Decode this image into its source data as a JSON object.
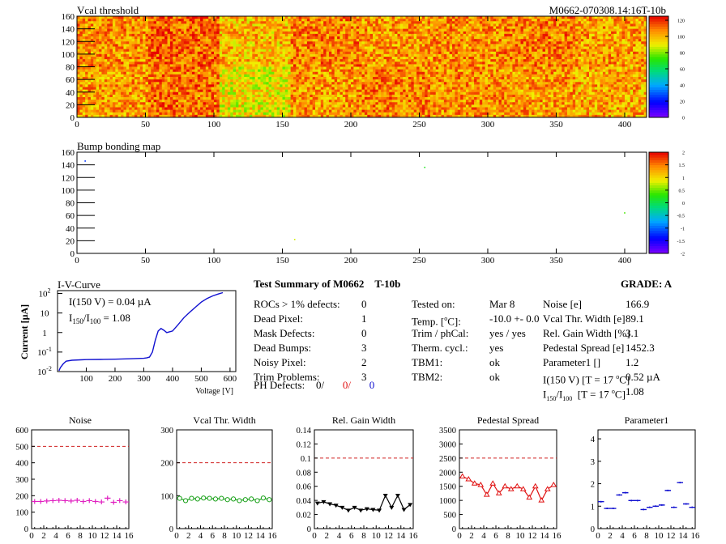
{
  "header": {
    "module_id": "M0662-070308.14:16T-10b"
  },
  "chart_data": [
    {
      "type": "heatmap",
      "title": "Vcal threshold",
      "x_ticks": [
        0,
        50,
        100,
        150,
        200,
        250,
        300,
        350,
        400
      ],
      "y_ticks": [
        0,
        20,
        40,
        60,
        80,
        100,
        120,
        140,
        160
      ],
      "xlim": [
        0,
        416
      ],
      "ylim": [
        0,
        160
      ],
      "roc_grid": {
        "cols": 8,
        "rows": 2
      },
      "roc_mean_levels": [
        [
          106,
          112,
          100,
          108,
          104,
          106,
          108,
          104
        ],
        [
          104,
          110,
          92,
          104,
          108,
          106,
          104,
          102
        ]
      ],
      "colorbar": {
        "min": 0,
        "max": 125,
        "ticks": [
          "0",
          "20",
          "40",
          "60",
          "80",
          "100",
          "120"
        ]
      }
    },
    {
      "type": "heatmap",
      "title": "Bump bonding map",
      "x_ticks": [
        0,
        50,
        100,
        150,
        200,
        250,
        300,
        350,
        400
      ],
      "y_ticks": [
        0,
        20,
        40,
        60,
        80,
        100,
        120,
        140,
        160
      ],
      "xlim": [
        0,
        416
      ],
      "ylim": [
        0,
        160
      ],
      "defects": [
        {
          "x": 6,
          "y": 146,
          "v": -1.2
        },
        {
          "x": 159,
          "y": 22,
          "v": 0.8
        },
        {
          "x": 254,
          "y": 136,
          "v": 0.2
        },
        {
          "x": 400,
          "y": 64,
          "v": 0.4
        }
      ],
      "colorbar": {
        "min": -2,
        "max": 2,
        "ticks": [
          "-2",
          "-1.5",
          "-1",
          "-0.5",
          "0",
          "0.5",
          "1",
          "1.5",
          "2"
        ]
      }
    },
    {
      "type": "line",
      "title": "I-V-Curve",
      "xlabel": "Voltage [V]",
      "ylabel": "Current [µA]",
      "y_scale": "log",
      "x_ticks": [
        "100",
        "200",
        "300",
        "400",
        "500",
        "600"
      ],
      "y_ticks": [
        {
          "base": "10",
          "exp": "-2"
        },
        {
          "base": "10",
          "exp": "-1"
        },
        {
          "base": "1",
          "exp": ""
        },
        {
          "base": "10",
          "exp": ""
        },
        {
          "base": "10",
          "exp": "2"
        }
      ],
      "xlim": [
        0,
        620
      ],
      "ylim": [
        0.01,
        140
      ],
      "annotation_line1": "I(150 V) = 0.04 µA",
      "annotation_line2_main": "I",
      "annotation_sub1": "150",
      "annotation_slash": "/I",
      "annotation_sub2": "100",
      "annotation_value": " =  1.08",
      "x": [
        5,
        10,
        20,
        30,
        50,
        80,
        100,
        150,
        200,
        250,
        300,
        310,
        320,
        330,
        340,
        350,
        360,
        370,
        380,
        400,
        420,
        440,
        460,
        480,
        500,
        520,
        540,
        560,
        575
      ],
      "y": [
        0.011,
        0.016,
        0.025,
        0.034,
        0.038,
        0.04,
        0.041,
        0.042,
        0.043,
        0.045,
        0.048,
        0.05,
        0.055,
        0.1,
        0.4,
        1.2,
        1.6,
        1.3,
        1.0,
        1.2,
        2.6,
        5.8,
        11,
        20,
        36,
        55,
        75,
        95,
        110
      ]
    },
    {
      "type": "scatter",
      "title": "Noise",
      "x_ticks": [
        "0",
        "2",
        "4",
        "6",
        "8",
        "10",
        "12",
        "14",
        "16"
      ],
      "y_ticks": [
        "0",
        "100",
        "200",
        "300",
        "400",
        "500",
        "600"
      ],
      "xlim": [
        0,
        16
      ],
      "ylim": [
        0,
        600
      ],
      "reference": 500,
      "color": "#e020c0",
      "marker": "plus",
      "connect": false,
      "x": [
        0,
        1,
        2,
        3,
        4,
        5,
        6,
        7,
        8,
        9,
        10,
        11,
        12,
        13,
        14,
        15
      ],
      "y": [
        165,
        165,
        168,
        170,
        172,
        170,
        168,
        172,
        165,
        170,
        165,
        162,
        185,
        160,
        170,
        162
      ]
    },
    {
      "type": "line",
      "title": "Vcal Thr. Width",
      "x_ticks": [
        "0",
        "2",
        "4",
        "6",
        "8",
        "10",
        "12",
        "14",
        "16"
      ],
      "y_ticks": [
        "0",
        "100",
        "200",
        "300"
      ],
      "xlim": [
        0,
        16
      ],
      "ylim": [
        0,
        300
      ],
      "reference": 200,
      "color": "#18a018",
      "marker": "circle",
      "connect": true,
      "x": [
        0,
        1,
        2,
        3,
        4,
        5,
        6,
        7,
        8,
        9,
        10,
        11,
        12,
        13,
        14,
        15
      ],
      "y": [
        92,
        85,
        92,
        90,
        93,
        92,
        90,
        92,
        88,
        90,
        85,
        88,
        90,
        85,
        93,
        88
      ]
    },
    {
      "type": "line",
      "title": "Rel. Gain Width",
      "x_ticks": [
        "0",
        "2",
        "4",
        "6",
        "8",
        "10",
        "12",
        "14",
        "16"
      ],
      "y_ticks": [
        "0",
        "0.02",
        "0.04",
        "0.06",
        "0.08",
        "0.1",
        "0.12",
        "0.14"
      ],
      "xlim": [
        0,
        16
      ],
      "ylim": [
        0,
        0.14
      ],
      "reference": 0.1,
      "color": "#000000",
      "marker": "triangle-down",
      "connect": true,
      "x": [
        0,
        1,
        2,
        3,
        4,
        5,
        6,
        7,
        8,
        9,
        10,
        11,
        12,
        13,
        14,
        15
      ],
      "y": [
        0.036,
        0.038,
        0.035,
        0.033,
        0.03,
        0.026,
        0.03,
        0.026,
        0.028,
        0.027,
        0.026,
        0.047,
        0.03,
        0.047,
        0.027,
        0.034
      ]
    },
    {
      "type": "line",
      "title": "Pedestal Spread",
      "x_ticks": [
        "0",
        "2",
        "4",
        "6",
        "8",
        "10",
        "12",
        "14",
        "16"
      ],
      "y_ticks": [
        "0",
        "500",
        "1000",
        "1500",
        "2000",
        "2500",
        "3000",
        "3500"
      ],
      "xlim": [
        0,
        16
      ],
      "ylim": [
        0,
        3500
      ],
      "reference": 2500,
      "color": "#e01010",
      "marker": "triangle-up",
      "connect": true,
      "x": [
        0,
        1,
        2,
        3,
        4,
        5,
        6,
        7,
        8,
        9,
        10,
        11,
        12,
        13,
        14,
        15
      ],
      "y": [
        1850,
        1750,
        1600,
        1550,
        1200,
        1600,
        1250,
        1500,
        1400,
        1500,
        1400,
        1100,
        1500,
        1000,
        1400,
        1550
      ]
    },
    {
      "type": "scatter",
      "title": "Parameter1",
      "x_ticks": [
        "0",
        "2",
        "4",
        "6",
        "8",
        "10",
        "12",
        "14",
        "16"
      ],
      "y_ticks": [
        "0",
        "1",
        "2",
        "3",
        "4"
      ],
      "xlim": [
        0,
        16
      ],
      "ylim": [
        0,
        4.4
      ],
      "reference": null,
      "color": "#1010d0",
      "marker": "hbar",
      "connect": false,
      "x": [
        0,
        1,
        2,
        3,
        4,
        5,
        6,
        7,
        8,
        9,
        10,
        11,
        12,
        13,
        14,
        15
      ],
      "y": [
        1.2,
        0.9,
        0.9,
        1.5,
        1.6,
        1.25,
        1.25,
        0.85,
        0.95,
        1.0,
        1.05,
        1.7,
        0.95,
        2.05,
        1.1,
        0.95
      ]
    }
  ],
  "summary": {
    "title": "Test Summary of M0662",
    "title_tag": "T-10b",
    "grade_label": "GRADE:  A",
    "col1": [
      {
        "label": "ROCs > 1% defects:",
        "value": "0"
      },
      {
        "label": "Dead Pixel:",
        "value": "1"
      },
      {
        "label": "Mask Defects:",
        "value": "0"
      },
      {
        "label": "Dead Bumps:",
        "value": "3"
      },
      {
        "label": "Noisy Pixel:",
        "value": "2"
      },
      {
        "label": "Trim Problems:",
        "value": "3"
      }
    ],
    "ph_defects": {
      "label": "PH Defects:",
      "v1": "0/",
      "v2": "0/",
      "v3": "0",
      "c2": "#e01010",
      "c3": "#1010d0"
    },
    "col2": [
      {
        "label": "Tested on:",
        "value": "Mar 8"
      },
      {
        "label": "Temp. [",
        "sup": "o",
        "label_tail": "C]:",
        "value": "-10.0 +- 0.0"
      },
      {
        "label": "Trim / phCal:",
        "value": "yes / yes"
      },
      {
        "label": "Therm. cycl.:",
        "value": "yes"
      },
      {
        "label": "TBM1:",
        "value": "ok"
      },
      {
        "label": "TBM2:",
        "value": "ok"
      }
    ],
    "col3": [
      {
        "label": "Noise [e]",
        "value": "166.9"
      },
      {
        "label": "Vcal Thr. Width [e]",
        "value": "89.1"
      },
      {
        "label": "Rel. Gain Width [%]",
        "value": "3.1"
      },
      {
        "label": "Pedestal Spread [e]",
        "value": "1452.3"
      },
      {
        "label": "Parameter1 []",
        "value": "1.2"
      },
      {
        "label": "I(150 V) [T = 17 ",
        "sup": "o",
        "label_tail": "C]",
        "value": "0.52 µA"
      },
      {
        "label": "I",
        "sub1": "150",
        "mid": "/I",
        "sub2": "100",
        "label_tail": "  [T = 17 ",
        "sup": "o",
        "label_tail2": "C]",
        "value": "1.08"
      }
    ]
  }
}
